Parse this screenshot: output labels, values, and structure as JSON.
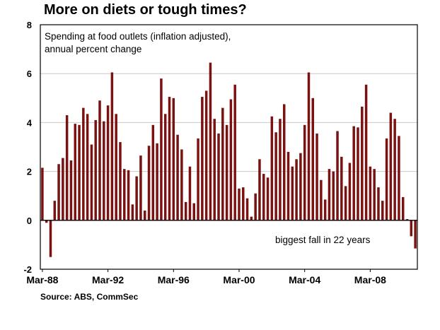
{
  "chart_data": {
    "type": "bar",
    "title": "More on diets or tough times?",
    "subtitle_lines": [
      "Spending at food outlets (inflation adjusted),",
      "annual percent change"
    ],
    "annotation": "biggest fall in 22 years",
    "source": "Source: ABS, CommSec",
    "xlabel": "",
    "ylabel": "",
    "ylim": [
      -2,
      8
    ],
    "yticks": [
      -2,
      0,
      2,
      4,
      6,
      8
    ],
    "x_tick_labels": [
      {
        "label": "Mar-88",
        "index": 0
      },
      {
        "label": "Mar-92",
        "index": 16
      },
      {
        "label": "Mar-96",
        "index": 32
      },
      {
        "label": "Mar-00",
        "index": 48
      },
      {
        "label": "Mar-04",
        "index": 64
      },
      {
        "label": "Mar-08",
        "index": 80
      }
    ],
    "x_start": "Mar-88",
    "frequency": "quarterly",
    "bar_color": "#7a1212",
    "values": [
      2.15,
      -0.1,
      -1.5,
      0.8,
      2.3,
      2.55,
      4.3,
      2.45,
      3.95,
      3.9,
      4.6,
      4.35,
      3.1,
      4.1,
      4.9,
      4.05,
      4.7,
      6.05,
      4.35,
      3.2,
      2.1,
      2.05,
      0.65,
      1.8,
      2.65,
      0.4,
      3.05,
      3.9,
      3.15,
      5.8,
      4.35,
      5.05,
      5.0,
      3.5,
      2.9,
      0.75,
      2.2,
      0.7,
      3.35,
      5.05,
      5.3,
      6.45,
      4.15,
      3.55,
      4.6,
      3.9,
      4.95,
      5.55,
      1.3,
      1.35,
      0.9,
      0.15,
      1.1,
      2.5,
      1.9,
      1.75,
      4.25,
      3.6,
      4.15,
      4.75,
      2.8,
      2.2,
      2.5,
      2.75,
      3.9,
      6.05,
      5.0,
      3.55,
      1.65,
      0.85,
      2.1,
      2.0,
      3.65,
      2.6,
      1.4,
      2.35,
      3.85,
      3.8,
      4.65,
      5.55,
      2.2,
      2.1,
      1.35,
      0.8,
      3.35,
      4.4,
      4.15,
      3.45,
      0.95,
      0.05,
      -0.65,
      -1.15
    ]
  }
}
